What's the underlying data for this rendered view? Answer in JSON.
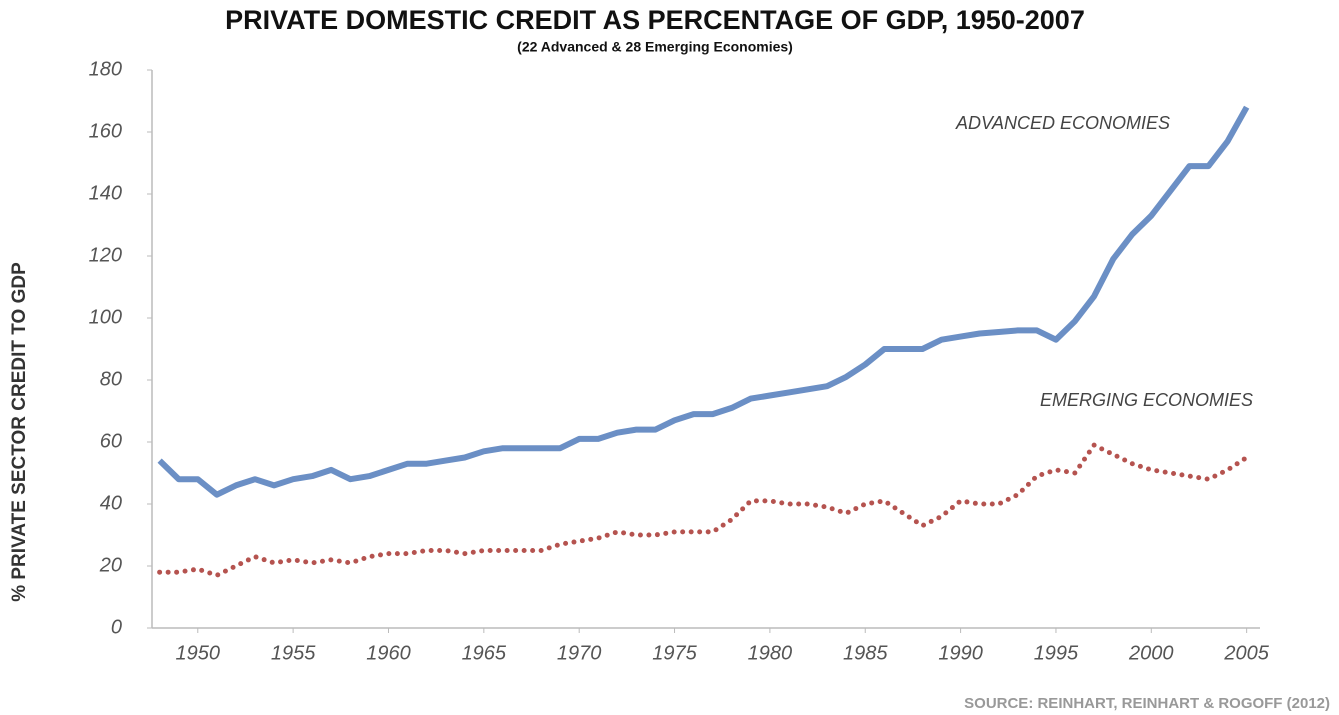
{
  "chart_data": {
    "type": "line",
    "title": "PRIVATE DOMESTIC CREDIT AS PERCENTAGE OF GDP, 1950-2007",
    "subtitle": "(22 Advanced & 28 Emerging Economies)",
    "y_label": "% PRIVATE SECTOR CREDIT TO GDP",
    "source": "SOURCE: REINHART, REINHART & ROGOFF (2012)",
    "x": [
      1948,
      1949,
      1950,
      1951,
      1952,
      1953,
      1954,
      1955,
      1956,
      1957,
      1958,
      1959,
      1960,
      1961,
      1962,
      1963,
      1964,
      1965,
      1966,
      1967,
      1968,
      1969,
      1970,
      1971,
      1972,
      1973,
      1974,
      1975,
      1976,
      1977,
      1978,
      1979,
      1980,
      1981,
      1982,
      1983,
      1984,
      1985,
      1986,
      1987,
      1988,
      1989,
      1990,
      1991,
      1992,
      1993,
      1994,
      1995,
      1996,
      1997,
      1998,
      1999,
      2000,
      2001,
      2002,
      2003,
      2004,
      2005
    ],
    "series": [
      {
        "name": "ADVANCED ECONOMIES",
        "color": "#6b8fc5",
        "style": "solid",
        "values": [
          54,
          48,
          48,
          43,
          46,
          48,
          46,
          48,
          49,
          51,
          48,
          49,
          51,
          53,
          53,
          54,
          55,
          57,
          58,
          58,
          58,
          58,
          61,
          61,
          63,
          64,
          64,
          67,
          69,
          69,
          71,
          74,
          75,
          76,
          77,
          78,
          81,
          85,
          90,
          90,
          90,
          93,
          94,
          95,
          95.5,
          96,
          96,
          93,
          99,
          107,
          119,
          127,
          133,
          141,
          149,
          149,
          157,
          168
        ]
      },
      {
        "name": "EMERGING ECONOMIES",
        "color": "#b5534f",
        "style": "dotted",
        "values": [
          18,
          18,
          19,
          17,
          20,
          23,
          21,
          22,
          21,
          22,
          21,
          23,
          24,
          24,
          25,
          25,
          24,
          25,
          25,
          25,
          25,
          27,
          28,
          29,
          31,
          30,
          30,
          31,
          31,
          31,
          35,
          41,
          41,
          40,
          40,
          39,
          37,
          40,
          41,
          37,
          33,
          36,
          41,
          40,
          40,
          43,
          49,
          51,
          50,
          59,
          56,
          53,
          51,
          50,
          49,
          48,
          51,
          55
        ]
      }
    ],
    "xlim": [
      1947.6,
      2005.7
    ],
    "xticks": [
      1950,
      1955,
      1960,
      1965,
      1970,
      1975,
      1980,
      1985,
      1990,
      1995,
      2000,
      2005
    ],
    "ylim": [
      0,
      180
    ],
    "yticks": [
      0,
      20,
      40,
      60,
      80,
      100,
      120,
      140,
      160,
      180
    ],
    "grid": false
  }
}
